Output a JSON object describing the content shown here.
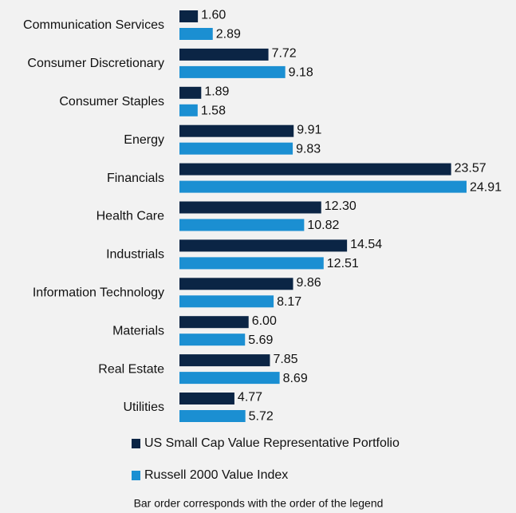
{
  "chart_data": {
    "type": "bar",
    "orientation": "horizontal",
    "categories": [
      "Communication Services",
      "Consumer Discretionary",
      "Consumer Staples",
      "Energy",
      "Financials",
      "Health Care",
      "Industrials",
      "Information Technology",
      "Materials",
      "Real Estate",
      "Utilities"
    ],
    "series": [
      {
        "name": "US Small Cap Value Representative Portfolio",
        "color": "#0b2545",
        "values": [
          1.6,
          7.72,
          1.89,
          9.91,
          23.57,
          12.3,
          14.54,
          9.86,
          6,
          7.85,
          4.77
        ],
        "value_labels": [
          "1.60",
          "7.72",
          "1.89",
          "9.91",
          "23.57",
          "12.30",
          "14.54",
          "9.86",
          "6.00",
          "7.85",
          "4.77"
        ]
      },
      {
        "name": "Russell 2000 Value Index",
        "color": "#1b8fd2",
        "values": [
          2.89,
          9.18,
          1.58,
          9.83,
          24.91,
          10.82,
          12.51,
          8.17,
          5.69,
          8.69,
          5.72
        ],
        "value_labels": [
          "2.89",
          "9.18",
          "1.58",
          "9.83",
          "24.91",
          "10.82",
          "12.51",
          "8.17",
          "5.69",
          "8.69",
          "5.72"
        ]
      }
    ],
    "legend": "bottom",
    "note": "Bar order corresponds with the order of the legend"
  }
}
